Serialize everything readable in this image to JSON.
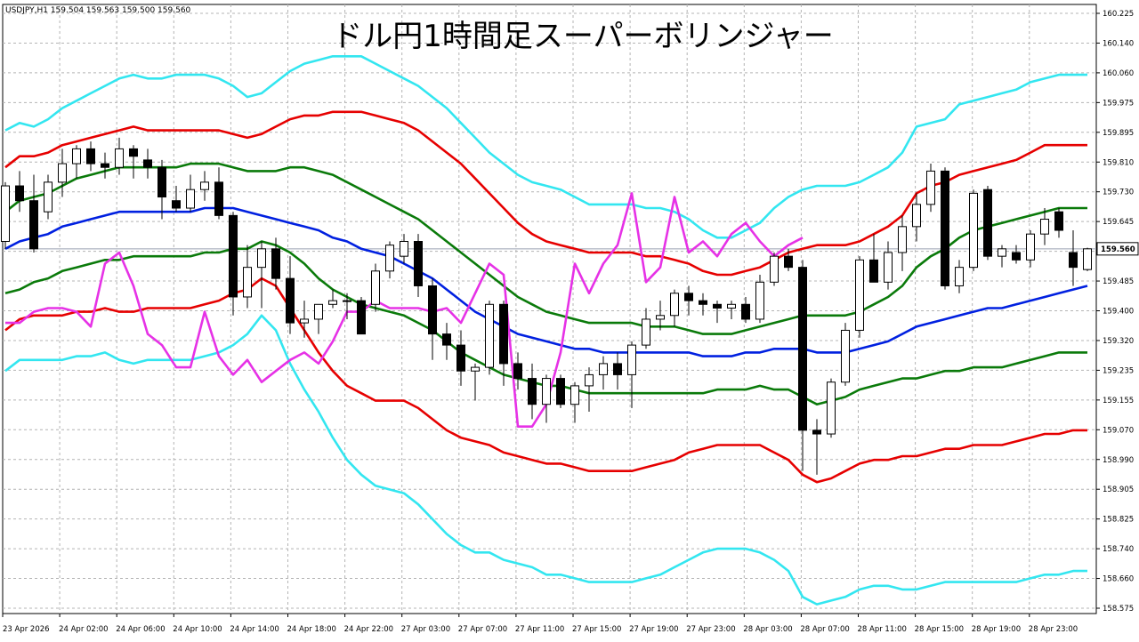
{
  "header": {
    "symbol_info": "USDJPY,H1  159.504 159.563 159.500 159.560",
    "title": "ドル円1時間足スーパーボリンジャー"
  },
  "colors": {
    "background": "#ffffff",
    "grid": "#b4b4b4",
    "bull_candle_fill": "#ffffff",
    "bear_candle_fill": "#000000",
    "candle_outline": "#000000",
    "band_outer": "#33e6f0",
    "band_middle": "#e60000",
    "band_inner": "#0a7a0a",
    "center_line": "#0020e0",
    "lagging_span": "#e632e6",
    "price_line": "#9aa0b0"
  },
  "chart_data": {
    "type": "candlestick",
    "title": "ドル円1時間足スーパーボリンジャー",
    "symbol": "USDJPY",
    "timeframe": "H1",
    "ohlc_readout": {
      "open": 159.504,
      "high": 159.563,
      "low": 159.5,
      "close": 159.56
    },
    "current_price": 159.56,
    "current_price_label": "159.560",
    "ylim": [
      158.575,
      160.22
    ],
    "y_tick_labels": [
      "160.225",
      "160.140",
      "160.060",
      "159.975",
      "159.895",
      "159.810",
      "159.730",
      "159.645",
      "159.560",
      "159.485",
      "159.400",
      "159.320",
      "159.235",
      "159.155",
      "159.070",
      "158.990",
      "158.905",
      "158.825",
      "158.740",
      "158.660",
      "158.575"
    ],
    "x_tick_labels": [
      "23 Apr 2026",
      "24 Apr 02:00",
      "24 Apr 06:00",
      "24 Apr 10:00",
      "24 Apr 14:00",
      "24 Apr 18:00",
      "24 Apr 22:00",
      "27 Apr 03:00",
      "27 Apr 07:00",
      "27 Apr 11:00",
      "27 Apr 15:00",
      "27 Apr 19:00",
      "27 Apr 23:00",
      "28 Apr 03:00",
      "28 Apr 07:00",
      "28 Apr 11:00",
      "28 Apr 15:00",
      "28 Apr 19:00",
      "28 Apr 23:00"
    ],
    "grid": true,
    "candles": [
      [
        159.58,
        159.74,
        159.56,
        159.73
      ],
      [
        159.73,
        159.77,
        159.66,
        159.69
      ],
      [
        159.69,
        159.76,
        159.55,
        159.56
      ],
      [
        159.66,
        159.76,
        159.64,
        159.74
      ],
      [
        159.74,
        159.83,
        159.7,
        159.79
      ],
      [
        159.79,
        159.84,
        159.75,
        159.83
      ],
      [
        159.83,
        159.85,
        159.77,
        159.79
      ],
      [
        159.79,
        159.82,
        159.75,
        159.78
      ],
      [
        159.78,
        159.86,
        159.76,
        159.83
      ],
      [
        159.83,
        159.84,
        159.75,
        159.81
      ],
      [
        159.8,
        159.83,
        159.75,
        159.78
      ],
      [
        159.78,
        159.8,
        159.64,
        159.7
      ],
      [
        159.69,
        159.73,
        159.66,
        159.67
      ],
      [
        159.67,
        159.76,
        159.66,
        159.72
      ],
      [
        159.72,
        159.77,
        159.69,
        159.74
      ],
      [
        159.74,
        159.78,
        159.64,
        159.65
      ],
      [
        159.65,
        159.66,
        159.38,
        159.43
      ],
      [
        159.43,
        159.57,
        159.4,
        159.51
      ],
      [
        159.51,
        159.58,
        159.4,
        159.56
      ],
      [
        159.56,
        159.59,
        159.45,
        159.48
      ],
      [
        159.48,
        159.54,
        159.33,
        159.36
      ],
      [
        159.36,
        159.42,
        159.32,
        159.37
      ],
      [
        159.37,
        159.41,
        159.33,
        159.41
      ],
      [
        159.41,
        159.45,
        159.4,
        159.42
      ],
      [
        159.42,
        159.44,
        159.37,
        159.42
      ],
      [
        159.42,
        159.43,
        159.33,
        159.33
      ],
      [
        159.41,
        159.52,
        159.39,
        159.5
      ],
      [
        159.5,
        159.58,
        159.48,
        159.57
      ],
      [
        159.54,
        159.6,
        159.52,
        159.58
      ],
      [
        159.58,
        159.6,
        159.43,
        159.46
      ],
      [
        159.46,
        159.48,
        159.26,
        159.33
      ],
      [
        159.33,
        159.36,
        159.26,
        159.3
      ],
      [
        159.3,
        159.34,
        159.19,
        159.23
      ],
      [
        159.23,
        159.25,
        159.15,
        159.24
      ],
      [
        159.24,
        159.42,
        159.22,
        159.41
      ],
      [
        159.41,
        159.42,
        159.19,
        159.25
      ],
      [
        159.25,
        159.28,
        159.18,
        159.21
      ],
      [
        159.21,
        159.25,
        159.1,
        159.14
      ],
      [
        159.14,
        159.22,
        159.09,
        159.21
      ],
      [
        159.21,
        159.22,
        159.13,
        159.14
      ],
      [
        159.14,
        159.2,
        159.09,
        159.19
      ],
      [
        159.19,
        159.24,
        159.12,
        159.22
      ],
      [
        159.22,
        159.27,
        159.18,
        159.25
      ],
      [
        159.25,
        159.28,
        159.18,
        159.22
      ],
      [
        159.22,
        159.31,
        159.13,
        159.3
      ],
      [
        159.3,
        159.4,
        159.29,
        159.37
      ],
      [
        159.37,
        159.42,
        159.34,
        159.38
      ],
      [
        159.38,
        159.45,
        159.35,
        159.44
      ],
      [
        159.44,
        159.46,
        159.38,
        159.42
      ],
      [
        159.42,
        159.44,
        159.38,
        159.41
      ],
      [
        159.41,
        159.42,
        159.36,
        159.4
      ],
      [
        159.4,
        159.42,
        159.37,
        159.41
      ],
      [
        159.41,
        159.43,
        159.36,
        159.37
      ],
      [
        159.37,
        159.49,
        159.36,
        159.47
      ],
      [
        159.47,
        159.55,
        159.46,
        159.54
      ],
      [
        159.54,
        159.56,
        159.5,
        159.51
      ],
      [
        159.51,
        159.53,
        158.96,
        159.07
      ],
      [
        159.07,
        159.1,
        158.95,
        159.06
      ],
      [
        159.06,
        159.21,
        159.05,
        159.2
      ],
      [
        159.2,
        159.36,
        159.19,
        159.34
      ],
      [
        159.34,
        159.54,
        159.32,
        159.53
      ],
      [
        159.53,
        159.6,
        159.47,
        159.47
      ],
      [
        159.47,
        159.58,
        159.45,
        159.55
      ],
      [
        159.55,
        159.65,
        159.5,
        159.62
      ],
      [
        159.62,
        159.71,
        159.58,
        159.68
      ],
      [
        159.68,
        159.79,
        159.66,
        159.77
      ],
      [
        159.77,
        159.78,
        159.45,
        159.46
      ],
      [
        159.46,
        159.53,
        159.44,
        159.51
      ],
      [
        159.51,
        159.72,
        159.5,
        159.71
      ],
      [
        159.72,
        159.73,
        159.53,
        159.54
      ],
      [
        159.54,
        159.57,
        159.51,
        159.56
      ],
      [
        159.55,
        159.57,
        159.52,
        159.53
      ],
      [
        159.53,
        159.61,
        159.51,
        159.6
      ],
      [
        159.6,
        159.67,
        159.57,
        159.64
      ],
      [
        159.66,
        159.67,
        159.59,
        159.61
      ],
      [
        159.55,
        159.61,
        159.46,
        159.51
      ],
      [
        159.504,
        159.563,
        159.5,
        159.56
      ]
    ],
    "series": [
      {
        "color_key": "band_outer",
        "values": [
          159.88,
          159.9,
          159.89,
          159.91,
          159.94,
          159.96,
          159.98,
          160.0,
          160.02,
          160.03,
          160.02,
          160.02,
          160.03,
          160.03,
          160.03,
          160.02,
          160.0,
          159.97,
          159.98,
          160.01,
          160.04,
          160.06,
          160.07,
          160.08,
          160.08,
          160.08,
          160.06,
          160.04,
          160.02,
          160.0,
          159.97,
          159.94,
          159.9,
          159.86,
          159.82,
          159.79,
          159.76,
          159.74,
          159.73,
          159.72,
          159.7,
          159.68,
          159.68,
          159.68,
          159.68,
          159.67,
          159.67,
          159.66,
          159.64,
          159.61,
          159.59,
          159.59,
          159.61,
          159.63,
          159.67,
          159.7,
          159.72,
          159.73,
          159.73,
          159.73,
          159.74,
          159.76,
          159.78,
          159.82,
          159.89,
          159.9,
          159.91,
          159.95,
          159.96,
          159.97,
          159.98,
          159.99,
          160.01,
          160.02,
          160.03,
          160.03,
          160.03
        ]
      },
      {
        "color_key": "band_middle",
        "values": [
          159.78,
          159.81,
          159.81,
          159.82,
          159.84,
          159.85,
          159.86,
          159.87,
          159.88,
          159.89,
          159.88,
          159.88,
          159.88,
          159.88,
          159.88,
          159.88,
          159.87,
          159.86,
          159.87,
          159.89,
          159.91,
          159.92,
          159.92,
          159.93,
          159.93,
          159.93,
          159.92,
          159.91,
          159.9,
          159.88,
          159.85,
          159.82,
          159.79,
          159.75,
          159.71,
          159.67,
          159.63,
          159.6,
          159.58,
          159.57,
          159.56,
          159.55,
          159.55,
          159.55,
          159.55,
          159.54,
          159.54,
          159.53,
          159.52,
          159.5,
          159.49,
          159.49,
          159.5,
          159.51,
          159.53,
          159.55,
          159.56,
          159.57,
          159.57,
          159.57,
          159.58,
          159.6,
          159.62,
          159.65,
          159.71,
          159.73,
          159.74,
          159.76,
          159.77,
          159.78,
          159.79,
          159.8,
          159.82,
          159.84,
          159.84,
          159.84,
          159.84
        ]
      },
      {
        "color_key": "band_inner",
        "values": [
          159.66,
          159.69,
          159.7,
          159.71,
          159.73,
          159.75,
          159.76,
          159.77,
          159.78,
          159.78,
          159.78,
          159.78,
          159.78,
          159.79,
          159.79,
          159.79,
          159.78,
          159.77,
          159.77,
          159.77,
          159.78,
          159.78,
          159.77,
          159.76,
          159.74,
          159.72,
          159.7,
          159.68,
          159.66,
          159.64,
          159.61,
          159.58,
          159.55,
          159.52,
          159.49,
          159.46,
          159.43,
          159.41,
          159.39,
          159.38,
          159.37,
          159.36,
          159.36,
          159.36,
          159.36,
          159.35,
          159.35,
          159.35,
          159.34,
          159.33,
          159.33,
          159.33,
          159.34,
          159.35,
          159.36,
          159.37,
          159.38,
          159.38,
          159.38,
          159.38,
          159.39,
          159.41,
          159.43,
          159.46,
          159.51,
          159.54,
          159.56,
          159.59,
          159.61,
          159.62,
          159.63,
          159.64,
          159.65,
          159.66,
          159.67,
          159.67,
          159.67
        ]
      },
      {
        "color_key": "center_line",
        "values": [
          159.56,
          159.58,
          159.59,
          159.6,
          159.62,
          159.63,
          159.64,
          159.65,
          159.66,
          159.66,
          159.66,
          159.66,
          159.66,
          159.66,
          159.67,
          159.67,
          159.67,
          159.66,
          159.65,
          159.64,
          159.63,
          159.62,
          159.61,
          159.59,
          159.58,
          159.56,
          159.55,
          159.54,
          159.52,
          159.5,
          159.48,
          159.45,
          159.42,
          159.39,
          159.37,
          159.35,
          159.33,
          159.32,
          159.31,
          159.3,
          159.29,
          159.29,
          159.28,
          159.28,
          159.28,
          159.28,
          159.28,
          159.28,
          159.28,
          159.27,
          159.27,
          159.27,
          159.28,
          159.28,
          159.29,
          159.29,
          159.29,
          159.28,
          159.28,
          159.28,
          159.29,
          159.3,
          159.31,
          159.33,
          159.35,
          159.36,
          159.37,
          159.38,
          159.39,
          159.4,
          159.4,
          159.41,
          159.42,
          159.43,
          159.44,
          159.45,
          159.46
        ]
      },
      {
        "color_key": "band_inner",
        "values": [
          159.44,
          159.45,
          159.47,
          159.48,
          159.5,
          159.51,
          159.52,
          159.53,
          159.53,
          159.54,
          159.54,
          159.54,
          159.54,
          159.54,
          159.55,
          159.55,
          159.56,
          159.56,
          159.58,
          159.57,
          159.55,
          159.52,
          159.48,
          159.45,
          159.43,
          159.41,
          159.4,
          159.39,
          159.38,
          159.36,
          159.34,
          159.31,
          159.28,
          159.26,
          159.24,
          159.22,
          159.21,
          159.2,
          159.19,
          159.19,
          159.18,
          159.17,
          159.17,
          159.17,
          159.17,
          159.17,
          159.17,
          159.17,
          159.17,
          159.17,
          159.18,
          159.18,
          159.18,
          159.19,
          159.18,
          159.18,
          159.16,
          159.14,
          159.15,
          159.16,
          159.18,
          159.19,
          159.2,
          159.21,
          159.21,
          159.22,
          159.23,
          159.23,
          159.24,
          159.24,
          159.24,
          159.25,
          159.26,
          159.27,
          159.28,
          159.28,
          159.28
        ]
      },
      {
        "color_key": "band_middle",
        "values": [
          159.34,
          159.37,
          159.38,
          159.38,
          159.38,
          159.39,
          159.39,
          159.4,
          159.39,
          159.39,
          159.4,
          159.4,
          159.4,
          159.4,
          159.41,
          159.42,
          159.44,
          159.45,
          159.48,
          159.46,
          159.4,
          159.34,
          159.28,
          159.23,
          159.19,
          159.17,
          159.15,
          159.15,
          159.15,
          159.13,
          159.1,
          159.07,
          159.05,
          159.04,
          159.03,
          159.01,
          159.0,
          158.99,
          158.98,
          158.98,
          158.97,
          158.96,
          158.96,
          158.96,
          158.96,
          158.97,
          158.98,
          158.99,
          159.01,
          159.02,
          159.03,
          159.03,
          159.03,
          159.03,
          159.01,
          158.99,
          158.95,
          158.93,
          158.94,
          158.96,
          158.98,
          158.99,
          158.99,
          159.0,
          159.0,
          159.01,
          159.02,
          159.02,
          159.03,
          159.03,
          159.03,
          159.04,
          159.05,
          159.06,
          159.06,
          159.07,
          159.07
        ]
      },
      {
        "color_key": "band_outer",
        "values": [
          159.23,
          159.26,
          159.26,
          159.26,
          159.26,
          159.27,
          159.27,
          159.28,
          159.26,
          159.25,
          159.26,
          159.26,
          159.26,
          159.26,
          159.27,
          159.28,
          159.3,
          159.33,
          159.38,
          159.34,
          159.25,
          159.18,
          159.12,
          159.05,
          158.99,
          158.95,
          158.92,
          158.91,
          158.9,
          158.87,
          158.83,
          158.79,
          158.76,
          158.74,
          158.74,
          158.72,
          158.71,
          158.7,
          158.68,
          158.68,
          158.67,
          158.66,
          158.66,
          158.66,
          158.66,
          158.67,
          158.68,
          158.7,
          158.72,
          158.74,
          158.75,
          158.75,
          158.75,
          158.74,
          158.72,
          158.69,
          158.62,
          158.6,
          158.61,
          158.62,
          158.64,
          158.65,
          158.65,
          158.64,
          158.64,
          158.65,
          158.66,
          158.66,
          158.66,
          158.66,
          158.66,
          158.66,
          158.67,
          158.68,
          158.68,
          158.69,
          158.69
        ]
      },
      {
        "color_key": "lagging_span",
        "values": [
          159.36,
          159.36,
          159.39,
          159.4,
          159.4,
          159.39,
          159.35,
          159.52,
          159.55,
          159.46,
          159.33,
          159.3,
          159.24,
          159.24,
          159.39,
          159.27,
          159.22,
          159.26,
          159.2,
          159.23,
          159.26,
          159.28,
          159.25,
          159.31,
          159.39,
          159.39,
          159.42,
          159.4,
          159.4,
          159.4,
          159.39,
          159.4,
          159.36,
          159.44,
          159.52,
          159.49,
          159.08,
          159.08,
          159.14,
          159.28,
          159.52,
          159.44,
          159.52,
          159.57,
          159.71,
          159.47,
          159.51,
          159.7,
          159.55,
          159.58,
          159.54,
          159.6,
          159.63,
          159.58,
          159.54,
          159.57,
          159.59
        ]
      }
    ]
  }
}
